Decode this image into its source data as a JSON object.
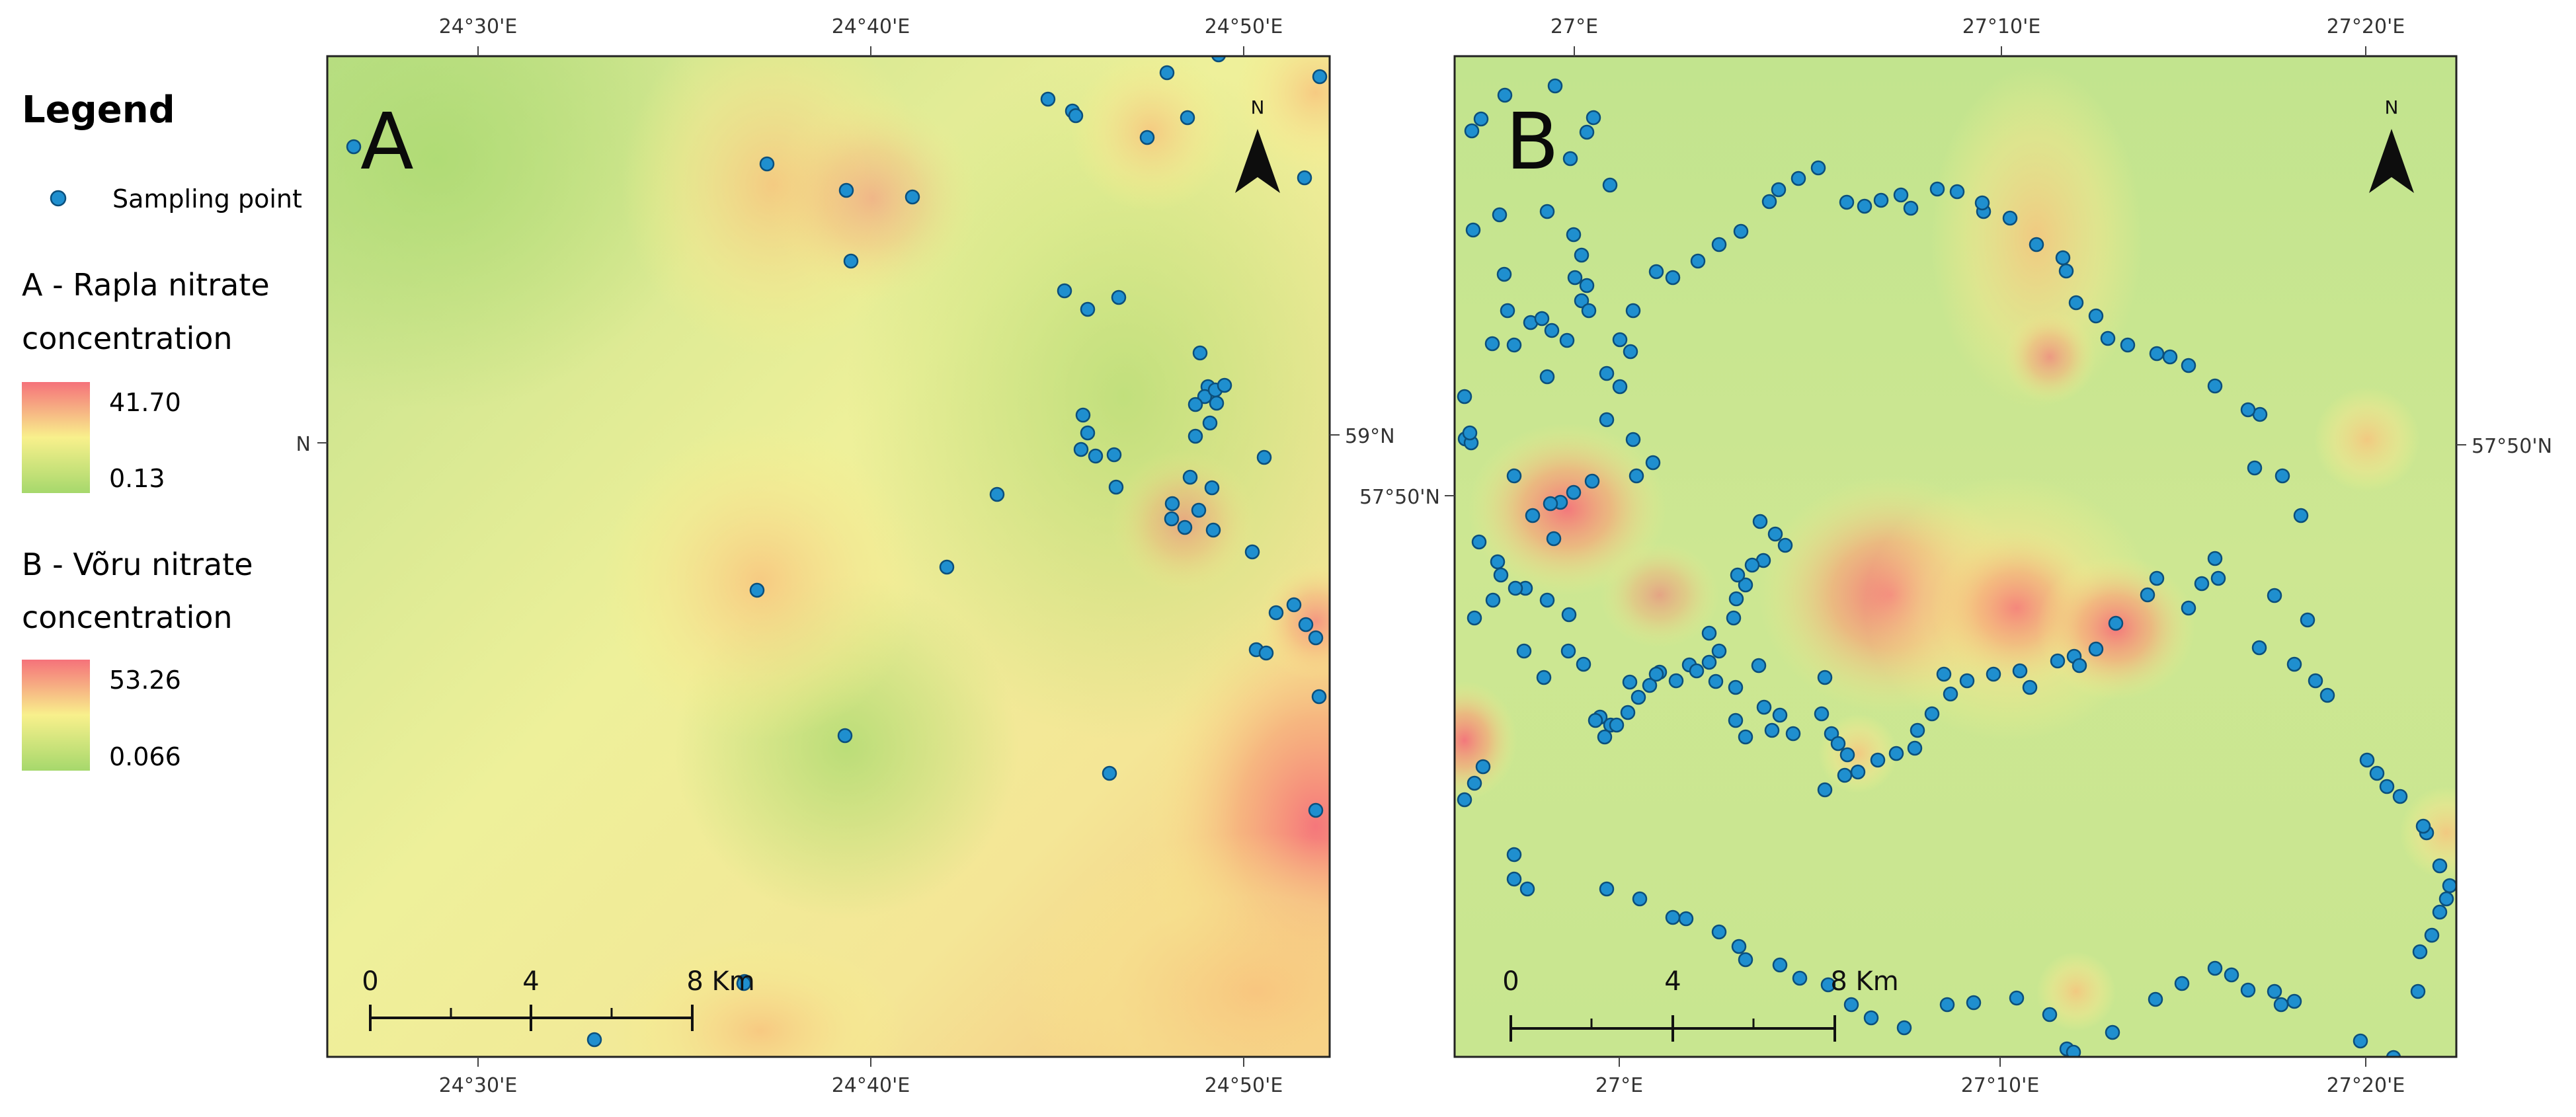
{
  "legend": {
    "title": "Legend",
    "sampling_point_label": "Sampling point",
    "section_a": {
      "title_line1": "A - Rapla nitrate",
      "title_line2": "concentration",
      "max_value": "41.70",
      "min_value": "0.13"
    },
    "section_b": {
      "title_line1": "B - Võru nitrate",
      "title_line2": "concentration",
      "max_value": "53.26",
      "min_value": "0.066"
    }
  },
  "colors": {
    "ramp_low": "#a6d86c",
    "ramp_mid": "#f8f08c",
    "ramp_high": "#f5727a",
    "point_fill": "#1f8fcf",
    "point_stroke": "#0b4f7c"
  },
  "map_a": {
    "panel_label": "A",
    "top_ticks": [
      "24°30'E",
      "24°40'E",
      "24°50'E"
    ],
    "bottom_ticks": [
      "24°30'E",
      "24°40'E",
      "24°50'E"
    ],
    "left_tick": "N",
    "right_tick": "59°N",
    "north_label": "N",
    "scale_labels": [
      "0",
      "4",
      "8 Km"
    ]
  },
  "map_b": {
    "panel_label": "B",
    "top_ticks": [
      "27°E",
      "27°10'E",
      "27°20'E"
    ],
    "bottom_ticks": [
      "27°E",
      "27°10'E",
      "27°20'E"
    ],
    "left_tick": "57°50'N",
    "right_tick": "57°50'N",
    "north_label": "N",
    "scale_labels": [
      "0",
      "4",
      "8 Km"
    ]
  }
}
